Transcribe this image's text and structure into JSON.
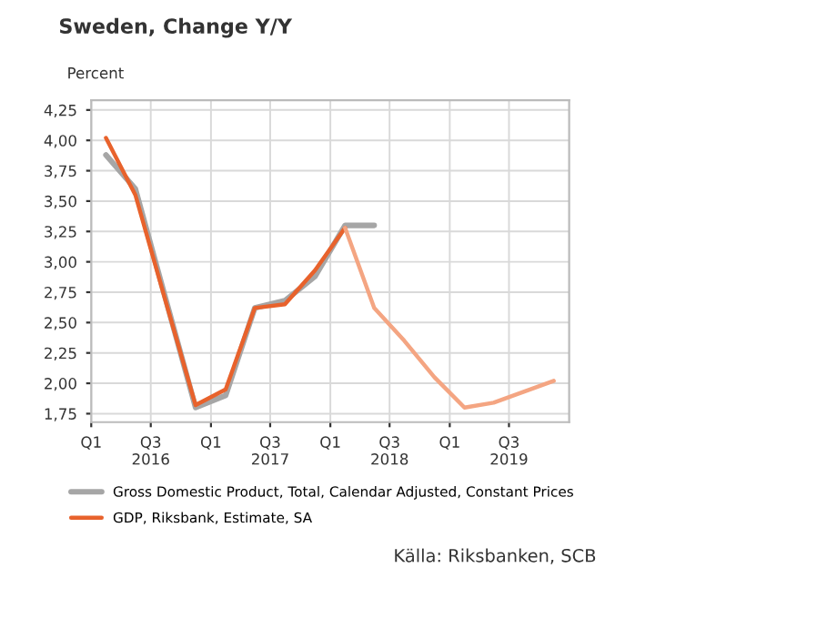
{
  "chart_data": {
    "type": "line",
    "title": "Sweden, Change Y/Y",
    "ylabel": "Percent",
    "x": [
      "2016-02-15",
      "2016-05-15",
      "2016-08-15",
      "2016-11-15",
      "2017-02-15",
      "2017-05-15",
      "2017-08-15",
      "2017-11-15",
      "2018-02-15",
      "2018-05-15"
    ],
    "series": [
      {
        "name": "Gross Domestic Product, Total, Calendar Adjusted, Constant Prices",
        "color": "#a6a6a6",
        "values": [
          3.88,
          3.6,
          2.7,
          1.8,
          1.9,
          2.62,
          2.68,
          2.88,
          3.3,
          3.3
        ]
      },
      {
        "name": "GDP, Riksbank, Estimate, SA",
        "color": "#e8622c",
        "values": [
          4.02,
          3.55,
          2.68,
          1.82,
          1.95,
          2.62,
          2.65,
          2.93,
          3.28,
          null
        ]
      },
      {
        "color": "#f4a582",
        "x": [
          "2018-02-15",
          "2018-05-15",
          "2018-08-15",
          "2018-11-15",
          "2019-02-15",
          "2019-05-15",
          "2019-08-15",
          "2019-11-15"
        ],
        "values": [
          3.28,
          2.62,
          2.35,
          2.05,
          1.8,
          1.84,
          1.93,
          2.02
        ]
      }
    ],
    "xlim": [
      "2016-01-01",
      "2020-01-01"
    ],
    "xticks": [
      {
        "value": "2016-01-01",
        "label": "Q1"
      },
      {
        "value": "2016-07-01",
        "label": "Q3\n2016"
      },
      {
        "value": "2017-01-01",
        "label": "Q1"
      },
      {
        "value": "2017-07-01",
        "label": "Q3\n2017"
      },
      {
        "value": "2018-01-01",
        "label": "Q1"
      },
      {
        "value": "2018-07-01",
        "label": "Q3\n2018"
      },
      {
        "value": "2019-01-01",
        "label": "Q1"
      },
      {
        "value": "2019-07-01",
        "label": "Q3\n2019"
      }
    ],
    "ylim": [
      1.68,
      4.33
    ],
    "yticks": [
      {
        "value": 1.75,
        "label": "1,75"
      },
      {
        "value": 2.0,
        "label": "2,00"
      },
      {
        "value": 2.25,
        "label": "2,25"
      },
      {
        "value": 2.5,
        "label": "2,50"
      },
      {
        "value": 2.75,
        "label": "2,75"
      },
      {
        "value": 3.0,
        "label": "3,00"
      },
      {
        "value": 3.25,
        "label": "3,25"
      },
      {
        "value": 3.5,
        "label": "3,50"
      },
      {
        "value": 3.75,
        "label": "3,75"
      },
      {
        "value": 4.0,
        "label": "4,00"
      },
      {
        "value": 4.25,
        "label": "4,25"
      }
    ],
    "grid": true,
    "legend": "bottom",
    "line_style": "solid",
    "marker": "none",
    "annotations": [
      "Källa: Riksbanken, SCB"
    ]
  }
}
